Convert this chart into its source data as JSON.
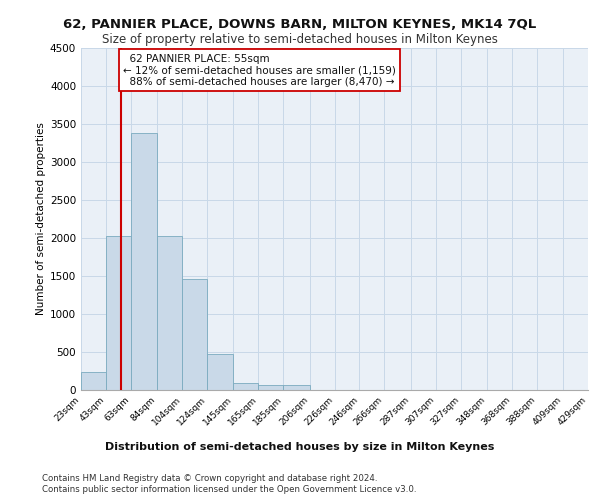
{
  "title_line1": "62, PANNIER PLACE, DOWNS BARN, MILTON KEYNES, MK14 7QL",
  "title_line2": "Size of property relative to semi-detached houses in Milton Keynes",
  "xlabel": "Distribution of semi-detached houses by size in Milton Keynes",
  "ylabel": "Number of semi-detached properties",
  "footnote1": "Contains HM Land Registry data © Crown copyright and database right 2024.",
  "footnote2": "Contains public sector information licensed under the Open Government Licence v3.0.",
  "property_size": 55,
  "property_label": "62 PANNIER PLACE: 55sqm",
  "smaller_pct": 12,
  "smaller_n": "1,159",
  "larger_pct": 88,
  "larger_n": "8,470",
  "bin_edges": [
    23,
    43,
    63,
    84,
    104,
    124,
    145,
    165,
    185,
    206,
    226,
    246,
    266,
    287,
    307,
    327,
    348,
    368,
    388,
    409,
    429
  ],
  "bar_heights": [
    230,
    2020,
    3380,
    2020,
    1460,
    470,
    95,
    60,
    60,
    0,
    0,
    0,
    0,
    0,
    0,
    0,
    0,
    0,
    0,
    0
  ],
  "bar_color": "#c9d9e8",
  "bar_edge_color": "#7aaabf",
  "grid_color": "#c8d8e8",
  "vline_color": "#cc0000",
  "annotation_box_color": "#ffffff",
  "annotation_box_edge": "#cc0000",
  "ylim": [
    0,
    4500
  ],
  "yticks": [
    0,
    500,
    1000,
    1500,
    2000,
    2500,
    3000,
    3500,
    4000,
    4500
  ],
  "background_color": "#eaf0f7"
}
